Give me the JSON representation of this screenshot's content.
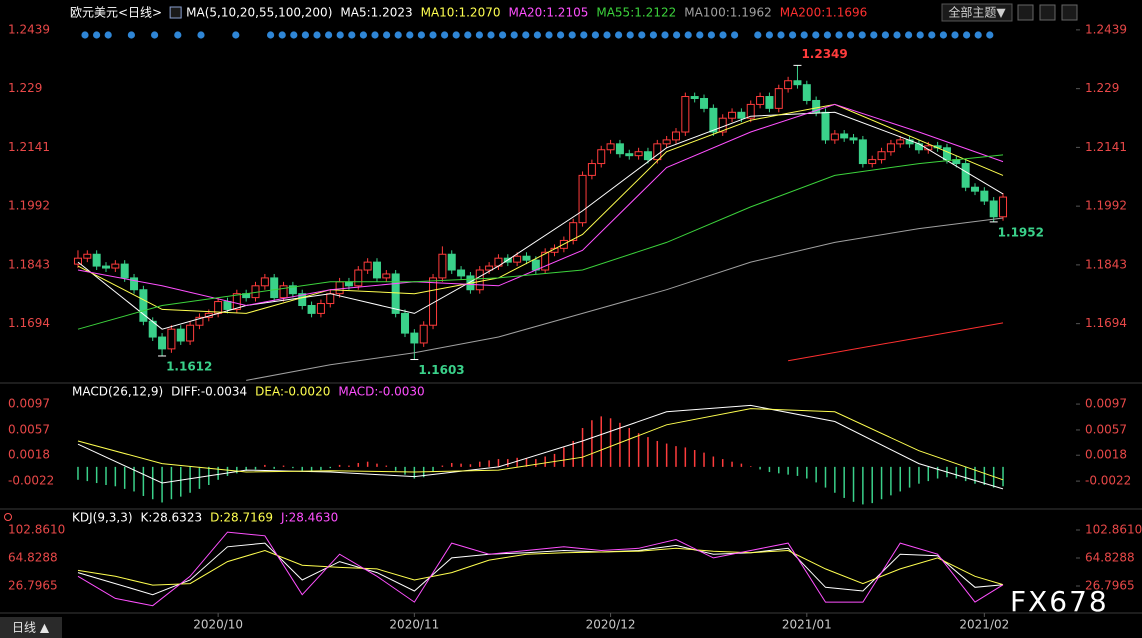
{
  "ui": {
    "toolbar_button": "全部主题▼",
    "period_button": "日线 ▲",
    "watermark": "FX678"
  },
  "chart_data": [
    {
      "type": "candlestick",
      "title": "欧元美元<日线>",
      "ma_label": "MA(5,10,20,55,100,200)",
      "up_color": "#ff3c3c",
      "down_color": "#3ad18a",
      "xlim": [
        -0.5,
        99.5
      ],
      "ylim": [
        1.1546,
        1.2459
      ],
      "yticks": [
        1.2439,
        1.229,
        1.2141,
        1.1992,
        1.1843,
        1.1694
      ],
      "candles": [
        [
          1.1845,
          1.188,
          1.1835,
          1.186
        ],
        [
          1.186,
          1.188,
          1.185,
          1.187
        ],
        [
          1.187,
          1.188,
          1.183,
          1.184
        ],
        [
          1.184,
          1.185,
          1.1825,
          1.1835
        ],
        [
          1.1835,
          1.1855,
          1.1825,
          1.1845
        ],
        [
          1.1845,
          1.1855,
          1.18,
          1.181
        ],
        [
          1.181,
          1.182,
          1.177,
          1.178
        ],
        [
          1.178,
          1.179,
          1.169,
          1.17
        ],
        [
          1.17,
          1.171,
          1.165,
          1.166
        ],
        [
          1.166,
          1.167,
          1.1612,
          1.163
        ],
        [
          1.163,
          1.169,
          1.162,
          1.168
        ],
        [
          1.168,
          1.169,
          1.164,
          1.165
        ],
        [
          1.165,
          1.17,
          1.164,
          1.169
        ],
        [
          1.169,
          1.172,
          1.168,
          1.171
        ],
        [
          1.171,
          1.173,
          1.17,
          1.172
        ],
        [
          1.172,
          1.176,
          1.171,
          1.175
        ],
        [
          1.175,
          1.176,
          1.172,
          1.173
        ],
        [
          1.173,
          1.178,
          1.172,
          1.177
        ],
        [
          1.177,
          1.178,
          1.175,
          1.176
        ],
        [
          1.176,
          1.18,
          1.175,
          1.179
        ],
        [
          1.179,
          1.182,
          1.178,
          1.181
        ],
        [
          1.181,
          1.182,
          1.175,
          1.176
        ],
        [
          1.176,
          1.18,
          1.175,
          1.179
        ],
        [
          1.179,
          1.18,
          1.176,
          1.177
        ],
        [
          1.177,
          1.178,
          1.173,
          1.174
        ],
        [
          1.174,
          1.175,
          1.171,
          1.172
        ],
        [
          1.172,
          1.1755,
          1.171,
          1.1745
        ],
        [
          1.1745,
          1.178,
          1.1735,
          1.177
        ],
        [
          1.177,
          1.181,
          1.176,
          1.18
        ],
        [
          1.18,
          1.181,
          1.178,
          1.179
        ],
        [
          1.179,
          1.184,
          1.178,
          1.183
        ],
        [
          1.183,
          1.186,
          1.182,
          1.185
        ],
        [
          1.185,
          1.186,
          1.18,
          1.181
        ],
        [
          1.181,
          1.183,
          1.18,
          1.182
        ],
        [
          1.182,
          1.183,
          1.171,
          1.172
        ],
        [
          1.172,
          1.173,
          1.166,
          1.167
        ],
        [
          1.167,
          1.168,
          1.1603,
          1.1645
        ],
        [
          1.1645,
          1.17,
          1.1635,
          1.169
        ],
        [
          1.169,
          1.182,
          1.168,
          1.181
        ],
        [
          1.181,
          1.189,
          1.18,
          1.187
        ],
        [
          1.187,
          1.188,
          1.182,
          1.183
        ],
        [
          1.183,
          1.184,
          1.1805,
          1.1815
        ],
        [
          1.1815,
          1.1825,
          1.177,
          1.178
        ],
        [
          1.178,
          1.184,
          1.177,
          1.183
        ],
        [
          1.183,
          1.185,
          1.182,
          1.184
        ],
        [
          1.184,
          1.187,
          1.183,
          1.186
        ],
        [
          1.186,
          1.187,
          1.184,
          1.185
        ],
        [
          1.185,
          1.1875,
          1.184,
          1.1865
        ],
        [
          1.1865,
          1.1875,
          1.1845,
          1.1855
        ],
        [
          1.1855,
          1.1865,
          1.182,
          1.183
        ],
        [
          1.183,
          1.1885,
          1.182,
          1.1875
        ],
        [
          1.1875,
          1.1895,
          1.1865,
          1.1885
        ],
        [
          1.1885,
          1.1915,
          1.1875,
          1.1905
        ],
        [
          1.1905,
          1.196,
          1.1895,
          1.195
        ],
        [
          1.195,
          1.208,
          1.194,
          1.207
        ],
        [
          1.207,
          1.211,
          1.206,
          1.21
        ],
        [
          1.21,
          1.2145,
          1.209,
          1.2135
        ],
        [
          1.2135,
          1.216,
          1.2125,
          1.215
        ],
        [
          1.215,
          1.216,
          1.2115,
          1.2125
        ],
        [
          1.2125,
          1.2135,
          1.211,
          1.212
        ],
        [
          1.212,
          1.214,
          1.211,
          1.213
        ],
        [
          1.213,
          1.214,
          1.21,
          1.211
        ],
        [
          1.211,
          1.216,
          1.21,
          1.215
        ],
        [
          1.215,
          1.217,
          1.214,
          1.216
        ],
        [
          1.216,
          1.219,
          1.215,
          1.218
        ],
        [
          1.218,
          1.228,
          1.217,
          1.227
        ],
        [
          1.227,
          1.228,
          1.2255,
          1.2265
        ],
        [
          1.2265,
          1.2275,
          1.223,
          1.224
        ],
        [
          1.224,
          1.225,
          1.217,
          1.218
        ],
        [
          1.218,
          1.2225,
          1.217,
          1.2215
        ],
        [
          1.2215,
          1.224,
          1.2205,
          1.223
        ],
        [
          1.223,
          1.224,
          1.2205,
          1.2215
        ],
        [
          1.2215,
          1.226,
          1.2205,
          1.225
        ],
        [
          1.225,
          1.228,
          1.224,
          1.227
        ],
        [
          1.227,
          1.228,
          1.223,
          1.224
        ],
        [
          1.224,
          1.23,
          1.223,
          1.229
        ],
        [
          1.229,
          1.232,
          1.228,
          1.231
        ],
        [
          1.231,
          1.2349,
          1.229,
          1.23
        ],
        [
          1.23,
          1.231,
          1.225,
          1.226
        ],
        [
          1.226,
          1.227,
          1.222,
          1.223
        ],
        [
          1.223,
          1.224,
          1.215,
          1.216
        ],
        [
          1.216,
          1.2185,
          1.215,
          1.2175
        ],
        [
          1.2175,
          1.2185,
          1.2155,
          1.2165
        ],
        [
          1.2165,
          1.2175,
          1.215,
          1.216
        ],
        [
          1.216,
          1.217,
          1.209,
          1.21
        ],
        [
          1.21,
          1.212,
          1.209,
          1.211
        ],
        [
          1.211,
          1.214,
          1.21,
          1.213
        ],
        [
          1.213,
          1.216,
          1.212,
          1.215
        ],
        [
          1.215,
          1.217,
          1.214,
          1.216
        ],
        [
          1.216,
          1.217,
          1.214,
          1.215
        ],
        [
          1.215,
          1.216,
          1.2125,
          1.2135
        ],
        [
          1.2135,
          1.2155,
          1.2125,
          1.2145
        ],
        [
          1.2145,
          1.2155,
          1.213,
          1.214
        ],
        [
          1.214,
          1.215,
          1.21,
          1.211
        ],
        [
          1.211,
          1.212,
          1.209,
          1.21
        ],
        [
          1.21,
          1.211,
          1.203,
          1.204
        ],
        [
          1.204,
          1.205,
          1.202,
          1.203
        ],
        [
          1.203,
          1.204,
          1.1995,
          1.2005
        ],
        [
          1.2005,
          1.2015,
          1.1952,
          1.1965
        ],
        [
          1.1965,
          1.2025,
          1.1955,
          1.2015
        ]
      ],
      "series": [
        {
          "name": "MA5:1.2023",
          "color": "#ffffff",
          "x": [
            0,
            9,
            18,
            27,
            36,
            45,
            54,
            63,
            72,
            81,
            90,
            99
          ],
          "values": [
            1.185,
            1.168,
            1.174,
            1.177,
            1.172,
            1.184,
            1.198,
            1.214,
            1.222,
            1.223,
            1.215,
            1.2023
          ]
        },
        {
          "name": "MA10:1.2070",
          "color": "#ffff50",
          "x": [
            0,
            9,
            18,
            27,
            36,
            45,
            54,
            63,
            72,
            81,
            90,
            99
          ],
          "values": [
            1.184,
            1.173,
            1.172,
            1.178,
            1.177,
            1.181,
            1.192,
            1.213,
            1.221,
            1.225,
            1.216,
            1.207
          ]
        },
        {
          "name": "MA20:1.2105",
          "color": "#ff50ff",
          "x": [
            0,
            9,
            18,
            27,
            36,
            45,
            54,
            63,
            72,
            81,
            90,
            99
          ],
          "values": [
            1.183,
            1.179,
            1.174,
            1.178,
            1.18,
            1.179,
            1.188,
            1.209,
            1.218,
            1.225,
            1.218,
            1.2105
          ]
        },
        {
          "name": "MA55:1.2122",
          "color": "#3cd23c",
          "x": [
            0,
            9,
            18,
            27,
            36,
            45,
            54,
            63,
            72,
            81,
            90,
            99
          ],
          "values": [
            1.168,
            1.174,
            1.177,
            1.18,
            1.18,
            1.181,
            1.183,
            1.19,
            1.199,
            1.207,
            1.21,
            1.2122
          ]
        },
        {
          "name": "MA100:1.1962",
          "color": "#a0a0a0",
          "x": [
            18,
            27,
            36,
            45,
            54,
            63,
            72,
            81,
            90,
            99
          ],
          "values": [
            1.155,
            1.159,
            1.162,
            1.166,
            1.172,
            1.178,
            1.185,
            1.19,
            1.1935,
            1.1962
          ]
        },
        {
          "name": "MA200:1.1696",
          "color": "#ff3030",
          "x": [
            76,
            99
          ],
          "values": [
            1.16,
            1.1696
          ]
        }
      ],
      "annotations": [
        {
          "value": 1.2349,
          "x": 77
        },
        {
          "value": 1.1952,
          "x": 98
        },
        {
          "value": 1.1612,
          "x": 9
        },
        {
          "value": 1.1603,
          "x": 36
        }
      ]
    },
    {
      "type": "combo",
      "title": "MACD(26,12,9)",
      "xlim": [
        -0.5,
        99.5
      ],
      "ylim": [
        -0.0062,
        0.0128
      ],
      "yticks": [
        0.0097,
        0.0057,
        0.0018,
        -0.0022
      ],
      "bars": {
        "name": "MACD:-0.0030",
        "color": "#ff50ff",
        "up_color": "#ff3c3c",
        "down_color": "#3ad18a",
        "values": [
          -0.002,
          -0.0022,
          -0.0025,
          -0.0028,
          -0.003,
          -0.0034,
          -0.0038,
          -0.0045,
          -0.005,
          -0.0055,
          -0.005,
          -0.0046,
          -0.004,
          -0.0034,
          -0.0028,
          -0.002,
          -0.0014,
          -0.001,
          -0.0006,
          -0.0004,
          0.0003,
          -0.0003,
          0.0002,
          -0.0002,
          -0.0006,
          -0.0008,
          -0.0005,
          -0.0002,
          0.0003,
          0.0002,
          0.0006,
          0.0008,
          0.0005,
          0.0002,
          -0.0006,
          -0.0012,
          -0.0018,
          -0.0016,
          -0.0008,
          0.0002,
          0.0006,
          0.0005,
          0.0004,
          0.0008,
          0.001,
          0.0012,
          0.0012,
          0.0014,
          0.0013,
          0.0012,
          0.0016,
          0.002,
          0.003,
          0.004,
          0.006,
          0.0072,
          0.0078,
          0.0075,
          0.0068,
          0.006,
          0.0052,
          0.0046,
          0.004,
          0.0036,
          0.0032,
          0.003,
          0.0026,
          0.0022,
          0.0016,
          0.0012,
          0.0008,
          0.0005,
          0.0001,
          -0.0004,
          -0.0008,
          -0.001,
          -0.0012,
          -0.0014,
          -0.0018,
          -0.0024,
          -0.0032,
          -0.004,
          -0.0048,
          -0.0054,
          -0.0058,
          -0.0056,
          -0.005,
          -0.0044,
          -0.0038,
          -0.0032,
          -0.0026,
          -0.0022,
          -0.0018,
          -0.0016,
          -0.0018,
          -0.0022,
          -0.0026,
          -0.0028,
          -0.0032,
          -0.003
        ]
      },
      "series": [
        {
          "name": "DIFF:-0.0034",
          "color": "#ffffff",
          "x": [
            0,
            9,
            18,
            27,
            36,
            45,
            54,
            63,
            72,
            81,
            90,
            99
          ],
          "values": [
            0.0035,
            -0.0025,
            -0.0005,
            -0.0008,
            -0.0015,
            0.0,
            0.004,
            0.0085,
            0.0095,
            0.007,
            0.0005,
            -0.0034
          ]
        },
        {
          "name": "DEA:-0.0020",
          "color": "#ffff50",
          "x": [
            0,
            9,
            18,
            27,
            36,
            45,
            54,
            63,
            72,
            81,
            90,
            99
          ],
          "values": [
            0.004,
            0.0005,
            -0.0008,
            -0.0006,
            -0.0008,
            -0.0005,
            0.0015,
            0.0065,
            0.009,
            0.0085,
            0.0025,
            -0.002
          ]
        }
      ]
    },
    {
      "type": "line",
      "title": "KDJ(9,3,3)",
      "xlim": [
        -0.5,
        99.5
      ],
      "ylim": [
        -8.5,
        127.3
      ],
      "yticks": [
        {
          "value": 102.861,
          "label": "102.8610"
        },
        64.8288,
        26.7965
      ],
      "xticks": [
        {
          "value": 15,
          "label": "2020/10"
        },
        {
          "value": 36,
          "label": "2020/11"
        },
        {
          "value": 57,
          "label": "2020/12"
        },
        {
          "value": 78,
          "label": "2021/01"
        },
        {
          "value": 97,
          "label": "2021/02"
        }
      ],
      "series": [
        {
          "name": "K:28.6323",
          "color": "#ffffff",
          "x": [
            0,
            4,
            8,
            12,
            16,
            20,
            24,
            28,
            32,
            36,
            40,
            44,
            48,
            52,
            56,
            60,
            64,
            68,
            72,
            76,
            80,
            84,
            88,
            92,
            96,
            99
          ],
          "values": [
            45,
            30,
            15,
            35,
            80,
            85,
            35,
            60,
            45,
            20,
            65,
            70,
            72,
            75,
            73,
            75,
            82,
            70,
            72,
            78,
            25,
            20,
            70,
            68,
            25,
            28.6323
          ]
        },
        {
          "name": "D:28.7169",
          "color": "#ffff50",
          "x": [
            0,
            4,
            8,
            12,
            16,
            20,
            24,
            28,
            32,
            36,
            40,
            44,
            48,
            52,
            56,
            60,
            64,
            68,
            72,
            76,
            80,
            84,
            88,
            92,
            96,
            99
          ],
          "values": [
            48,
            40,
            28,
            30,
            60,
            75,
            55,
            52,
            50,
            35,
            45,
            62,
            70,
            72,
            73,
            74,
            78,
            74,
            72,
            75,
            50,
            30,
            50,
            65,
            40,
            28.7169
          ]
        },
        {
          "name": "J:28.4630",
          "color": "#ff50ff",
          "x": [
            0,
            4,
            8,
            12,
            16,
            20,
            24,
            28,
            32,
            36,
            40,
            44,
            48,
            52,
            56,
            60,
            64,
            68,
            72,
            76,
            80,
            84,
            88,
            92,
            96,
            99
          ],
          "values": [
            40,
            10,
            0,
            40,
            100,
            95,
            15,
            70,
            40,
            5,
            85,
            70,
            75,
            80,
            75,
            78,
            90,
            65,
            75,
            85,
            5,
            5,
            85,
            70,
            5,
            28.463
          ]
        }
      ]
    }
  ]
}
